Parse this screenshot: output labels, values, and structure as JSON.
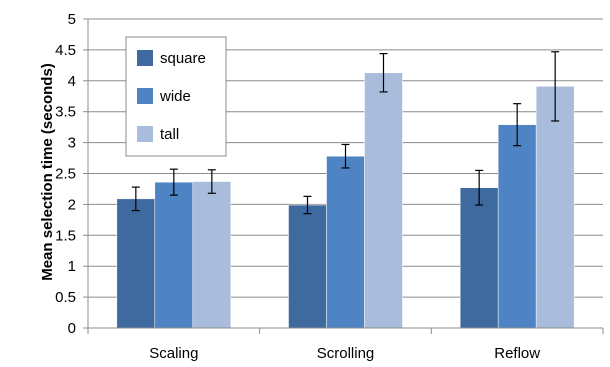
{
  "chart_data": {
    "type": "bar",
    "title": "",
    "xlabel": "",
    "ylabel": "Mean selection time (seconds)",
    "ylim": [
      0,
      5
    ],
    "yticks": [
      "0",
      "0.5",
      "1",
      "1.5",
      "2",
      "2.5",
      "3",
      "3.5",
      "4",
      "4.5",
      "5"
    ],
    "categories": [
      "Scaling",
      "Scrolling",
      "Reflow"
    ],
    "grid": true,
    "legend_position": "top-left",
    "series": [
      {
        "name": "square",
        "color": "#3f6aa0",
        "values": [
          2.09,
          1.99,
          2.27
        ],
        "error": [
          0.19,
          0.14,
          0.28
        ]
      },
      {
        "name": "wide",
        "color": "#4e84c4",
        "values": [
          2.36,
          2.78,
          3.29
        ],
        "error": [
          0.21,
          0.19,
          0.34
        ]
      },
      {
        "name": "tall",
        "color": "#a9bcdc",
        "values": [
          2.37,
          4.13,
          3.91
        ],
        "error": [
          0.19,
          0.31,
          0.56
        ]
      }
    ]
  }
}
